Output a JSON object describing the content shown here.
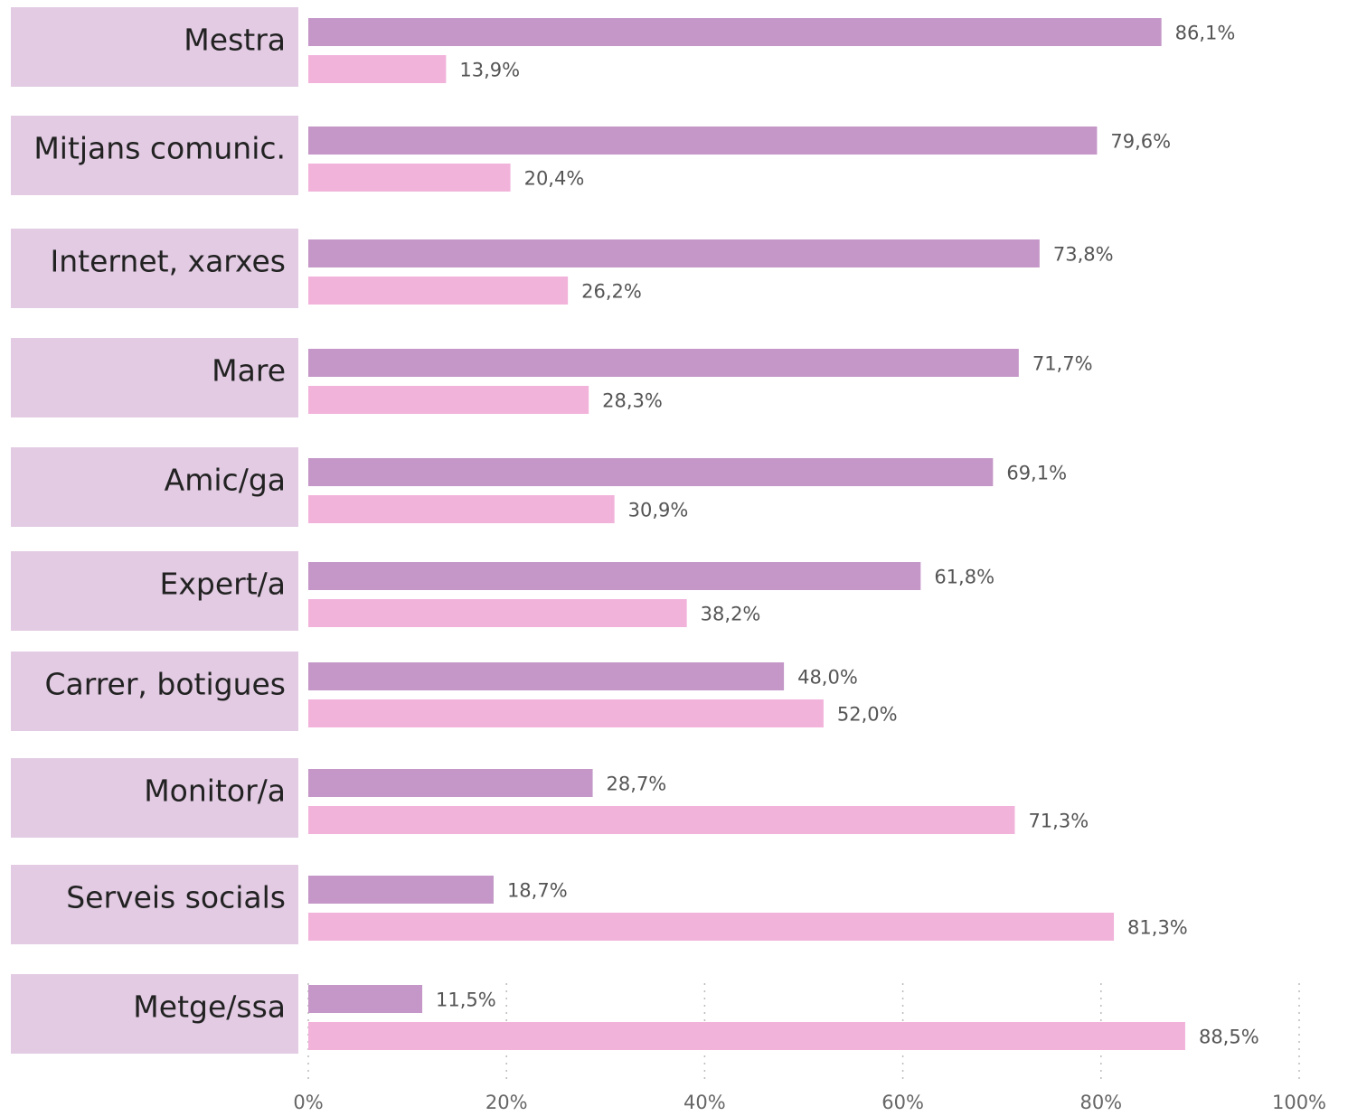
{
  "chart_data": {
    "type": "bar",
    "categories": [
      "Mestra",
      "Mitjans comunic.",
      "Internet, xarxes",
      "Mare",
      "Amic/ga",
      "Expert/a",
      "Carrer, botigues",
      "Monitor/a",
      "Serveis socials",
      "Metge/ssa"
    ],
    "series": [
      {
        "color": "#c497c8",
        "values": [
          86.1,
          79.6,
          73.8,
          71.7,
          69.1,
          61.8,
          48.0,
          28.7,
          18.7,
          11.5
        ],
        "value_labels": [
          "86,1%",
          "79,6%",
          "73,8%",
          "71,7%",
          "69,1%",
          "61,8%",
          "48,0%",
          "28,7%",
          "18,7%",
          "11,5%"
        ]
      },
      {
        "color": "#f2b3db",
        "values": [
          13.9,
          20.4,
          26.2,
          28.3,
          30.9,
          38.2,
          52.0,
          71.3,
          81.3,
          88.5
        ],
        "value_labels": [
          "13,9%",
          "20,4%",
          "26,2%",
          "28,3%",
          "30,9%",
          "38,2%",
          "52,0%",
          "71,3%",
          "81,3%",
          "88,5%"
        ]
      }
    ],
    "xlim": [
      0,
      100
    ],
    "xticks": [
      {
        "value": 0,
        "label": "0%"
      },
      {
        "value": 20,
        "label": "20%"
      },
      {
        "value": 40,
        "label": "40%"
      },
      {
        "value": 60,
        "label": "60%"
      },
      {
        "value": 80,
        "label": "80%"
      },
      {
        "value": 100,
        "label": "100%"
      }
    ],
    "grid": true
  }
}
